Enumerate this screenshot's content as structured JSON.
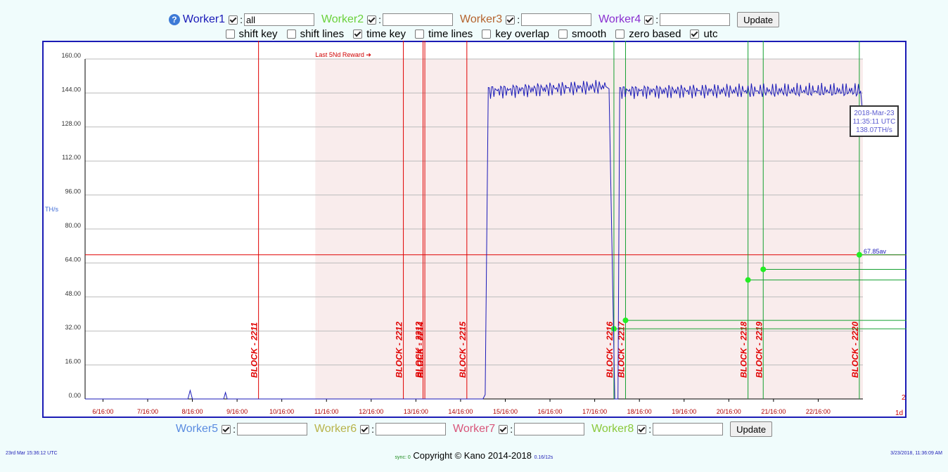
{
  "workers_top": [
    {
      "label": "Worker1",
      "color": "#1a1ab8",
      "checked": true,
      "value": "all"
    },
    {
      "label": "Worker2",
      "color": "#6ad13a",
      "checked": true,
      "value": ""
    },
    {
      "label": "Worker3",
      "color": "#b5632d",
      "checked": true,
      "value": ""
    },
    {
      "label": "Worker4",
      "color": "#8a2ed0",
      "checked": true,
      "value": ""
    }
  ],
  "workers_bottom": [
    {
      "label": "Worker5",
      "color": "#5a8be0",
      "checked": true,
      "value": ""
    },
    {
      "label": "Worker6",
      "color": "#b8b34a",
      "checked": true,
      "value": ""
    },
    {
      "label": "Worker7",
      "color": "#d8567a",
      "checked": true,
      "value": ""
    },
    {
      "label": "Worker8",
      "color": "#8ac83a",
      "checked": true,
      "value": ""
    }
  ],
  "update_label": "Update",
  "help_icon": "question-circle-icon",
  "options": [
    {
      "label": "shift key",
      "checked": false
    },
    {
      "label": "shift lines",
      "checked": false
    },
    {
      "label": "time key",
      "checked": true
    },
    {
      "label": "time lines",
      "checked": false
    },
    {
      "label": "key overlap",
      "checked": false
    },
    {
      "label": "smooth",
      "checked": false
    },
    {
      "label": "zero based",
      "checked": false
    },
    {
      "label": "utc",
      "checked": true
    }
  ],
  "chart_data": {
    "type": "line",
    "ylabel": "TH/s",
    "ylim": [
      0,
      160
    ],
    "ytick_labels": [
      "0.00",
      "16.00",
      "32.00",
      "48.00",
      "64.00",
      "80.00",
      "96.00",
      "112.00",
      "128.00",
      "144.00",
      "160.00"
    ],
    "xtick_labels": [
      "6/16:00",
      "7/16:00",
      "8/16:00",
      "9/16:00",
      "10/16:00",
      "11/16:00",
      "12/16:00",
      "13/16:00",
      "14/16:00",
      "15/16:00",
      "16/16:00",
      "17/16:00",
      "18/16:00",
      "19/16:00",
      "20/16:00",
      "21/16:00",
      "22/16:00"
    ],
    "x_day_start": 5.7,
    "x_day_end": 23.1,
    "reward_label": "Last 5Nd Reward ➔",
    "reward_start_day": 10.85,
    "average_value": 67.85,
    "average_label": "67.85av",
    "series": [
      {
        "name": "Worker1",
        "color": "#1a1ab8",
        "points": [
          [
            5.7,
            0
          ],
          [
            8.0,
            0
          ],
          [
            8.05,
            4
          ],
          [
            8.1,
            0
          ],
          [
            8.8,
            0
          ],
          [
            8.84,
            3
          ],
          [
            8.88,
            0
          ],
          [
            14.6,
            0
          ],
          [
            14.65,
            2
          ],
          [
            14.72,
            145
          ],
          [
            17.35,
            147
          ],
          [
            17.42,
            146
          ],
          [
            17.55,
            0
          ],
          [
            17.62,
            0
          ],
          [
            17.66,
            145
          ],
          [
            23.05,
            145
          ],
          [
            23.08,
            138
          ]
        ]
      }
    ],
    "blocks": [
      {
        "label": "BLOCK - 2211",
        "day": 9.58,
        "color": "#e00000"
      },
      {
        "label": "BLOCK - 2212",
        "day": 12.82,
        "color": "#e00000"
      },
      {
        "label": "BLOCK - 2213",
        "day": 13.26,
        "color": "#e00000"
      },
      {
        "label": "BLOCK - 2214",
        "day": 13.3,
        "color": "#e00000"
      },
      {
        "label": "BLOCK - 2215",
        "day": 14.24,
        "color": "#e00000"
      },
      {
        "label": "BLOCK - 2216",
        "day": 17.53,
        "color": "#14a030"
      },
      {
        "label": "BLOCK - 2217",
        "day": 17.79,
        "color": "#14a030"
      },
      {
        "label": "BLOCK - 2218",
        "day": 20.53,
        "color": "#14a030"
      },
      {
        "label": "BLOCK - 2219",
        "day": 20.87,
        "color": "#14a030"
      },
      {
        "label": "BLOCK - 2220",
        "day": 23.02,
        "color": "#14a030"
      }
    ],
    "block_points": [
      {
        "day": 17.53,
        "value": 33
      },
      {
        "day": 17.79,
        "value": 37
      },
      {
        "day": 20.53,
        "value": 56
      },
      {
        "day": 20.87,
        "value": 61
      },
      {
        "day": 23.02,
        "value": 67.85
      }
    ],
    "tooltip": {
      "lines": [
        "2018-Mar-23",
        "11:35:11 UTC",
        "138.07TH/s"
      ]
    },
    "right_count": "2",
    "right_period": "1d"
  },
  "footer_left": "23rd Mar 15:36:12 UTC",
  "sync_label": "sync: 0",
  "copyright": "Copyright © Kano 2014-2018",
  "timing": "0.16/12s",
  "footer_right": "3/23/2018, 11:36:09 AM"
}
